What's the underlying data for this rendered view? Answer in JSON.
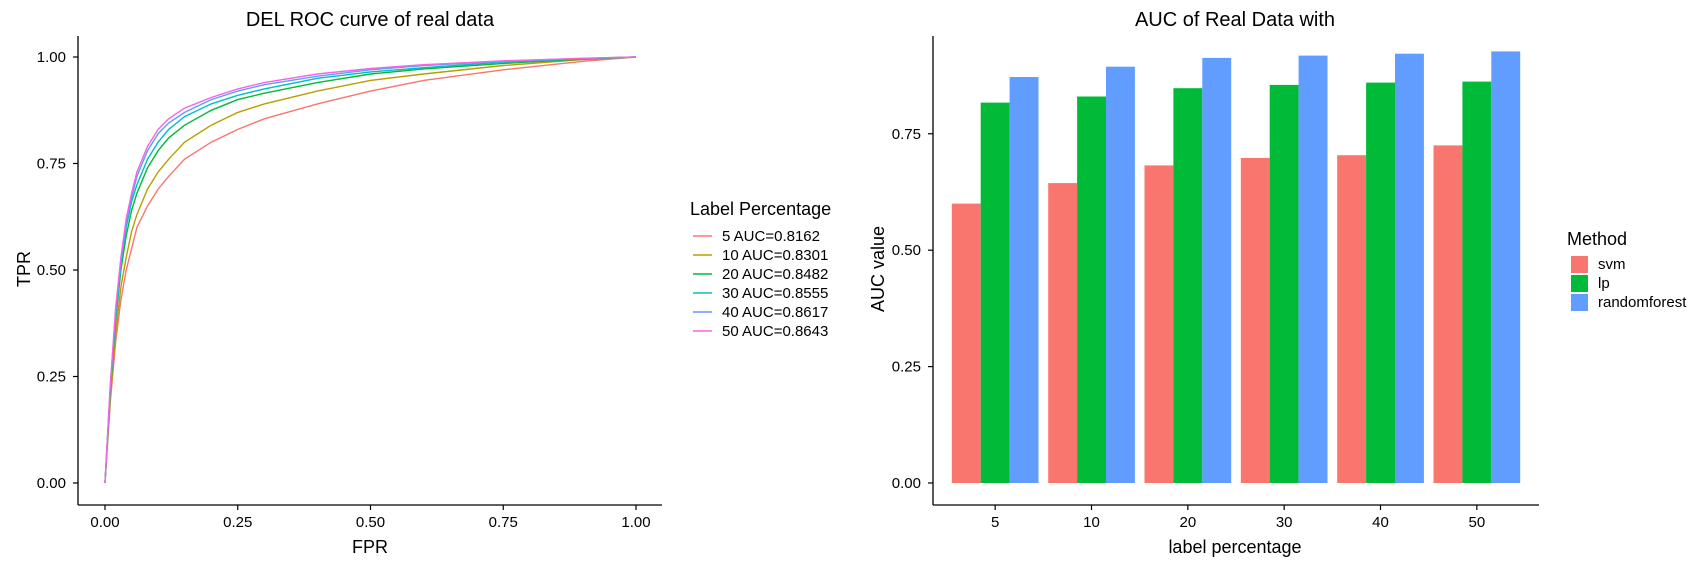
{
  "chart_data": [
    {
      "type": "line",
      "title": "DEL ROC curve of real data",
      "xlabel": "FPR",
      "ylabel": "TPR",
      "xlim": [
        0,
        1
      ],
      "ylim": [
        0,
        1
      ],
      "x_ticks": [
        "0.00",
        "0.25",
        "0.50",
        "0.75",
        "1.00"
      ],
      "y_ticks": [
        "0.00",
        "0.25",
        "0.50",
        "0.75",
        "1.00"
      ],
      "grid": false,
      "legend": {
        "title": "Label Percentage",
        "placement": "right"
      },
      "series": [
        {
          "name": "5 AUC=0.8162",
          "color": "#F8766D",
          "points": [
            [
              0,
              0
            ],
            [
              0.01,
              0.19
            ],
            [
              0.02,
              0.33
            ],
            [
              0.03,
              0.43
            ],
            [
              0.04,
              0.5
            ],
            [
              0.05,
              0.55
            ],
            [
              0.06,
              0.6
            ],
            [
              0.08,
              0.65
            ],
            [
              0.1,
              0.69
            ],
            [
              0.12,
              0.72
            ],
            [
              0.15,
              0.76
            ],
            [
              0.2,
              0.8
            ],
            [
              0.25,
              0.83
            ],
            [
              0.3,
              0.855
            ],
            [
              0.4,
              0.89
            ],
            [
              0.5,
              0.92
            ],
            [
              0.6,
              0.945
            ],
            [
              0.75,
              0.97
            ],
            [
              0.9,
              0.99
            ],
            [
              1,
              1
            ]
          ]
        },
        {
          "name": "10 AUC=0.8301",
          "color": "#B79F00",
          "points": [
            [
              0,
              0
            ],
            [
              0.01,
              0.2
            ],
            [
              0.02,
              0.35
            ],
            [
              0.03,
              0.46
            ],
            [
              0.04,
              0.53
            ],
            [
              0.05,
              0.59
            ],
            [
              0.06,
              0.63
            ],
            [
              0.08,
              0.69
            ],
            [
              0.1,
              0.73
            ],
            [
              0.12,
              0.76
            ],
            [
              0.15,
              0.8
            ],
            [
              0.2,
              0.84
            ],
            [
              0.25,
              0.87
            ],
            [
              0.3,
              0.89
            ],
            [
              0.4,
              0.92
            ],
            [
              0.5,
              0.945
            ],
            [
              0.6,
              0.96
            ],
            [
              0.75,
              0.98
            ],
            [
              0.9,
              0.994
            ],
            [
              1,
              1
            ]
          ]
        },
        {
          "name": "20 AUC=0.8482",
          "color": "#00BA38",
          "points": [
            [
              0,
              0
            ],
            [
              0.01,
              0.22
            ],
            [
              0.02,
              0.38
            ],
            [
              0.03,
              0.5
            ],
            [
              0.04,
              0.58
            ],
            [
              0.05,
              0.64
            ],
            [
              0.06,
              0.68
            ],
            [
              0.08,
              0.74
            ],
            [
              0.1,
              0.78
            ],
            [
              0.12,
              0.81
            ],
            [
              0.15,
              0.84
            ],
            [
              0.2,
              0.875
            ],
            [
              0.25,
              0.9
            ],
            [
              0.3,
              0.915
            ],
            [
              0.4,
              0.94
            ],
            [
              0.5,
              0.96
            ],
            [
              0.6,
              0.972
            ],
            [
              0.75,
              0.985
            ],
            [
              0.9,
              0.995
            ],
            [
              1,
              1
            ]
          ]
        },
        {
          "name": "30 AUC=0.8555",
          "color": "#00BFC4",
          "points": [
            [
              0,
              0
            ],
            [
              0.01,
              0.22
            ],
            [
              0.02,
              0.39
            ],
            [
              0.03,
              0.51
            ],
            [
              0.04,
              0.6
            ],
            [
              0.05,
              0.66
            ],
            [
              0.06,
              0.7
            ],
            [
              0.08,
              0.76
            ],
            [
              0.1,
              0.8
            ],
            [
              0.12,
              0.83
            ],
            [
              0.15,
              0.86
            ],
            [
              0.2,
              0.89
            ],
            [
              0.25,
              0.91
            ],
            [
              0.3,
              0.925
            ],
            [
              0.4,
              0.95
            ],
            [
              0.5,
              0.965
            ],
            [
              0.6,
              0.975
            ],
            [
              0.75,
              0.988
            ],
            [
              0.9,
              0.996
            ],
            [
              1,
              1
            ]
          ]
        },
        {
          "name": "40 AUC=0.8617",
          "color": "#619CFF",
          "points": [
            [
              0,
              0
            ],
            [
              0.01,
              0.23
            ],
            [
              0.02,
              0.4
            ],
            [
              0.03,
              0.52
            ],
            [
              0.04,
              0.61
            ],
            [
              0.05,
              0.67
            ],
            [
              0.06,
              0.72
            ],
            [
              0.08,
              0.78
            ],
            [
              0.1,
              0.82
            ],
            [
              0.12,
              0.845
            ],
            [
              0.15,
              0.87
            ],
            [
              0.2,
              0.9
            ],
            [
              0.25,
              0.92
            ],
            [
              0.3,
              0.935
            ],
            [
              0.4,
              0.955
            ],
            [
              0.5,
              0.97
            ],
            [
              0.6,
              0.98
            ],
            [
              0.75,
              0.99
            ],
            [
              0.9,
              0.997
            ],
            [
              1,
              1
            ]
          ]
        },
        {
          "name": "50 AUC=0.8643",
          "color": "#F564E3",
          "points": [
            [
              0,
              0
            ],
            [
              0.01,
              0.23
            ],
            [
              0.02,
              0.41
            ],
            [
              0.03,
              0.53
            ],
            [
              0.04,
              0.62
            ],
            [
              0.05,
              0.68
            ],
            [
              0.06,
              0.73
            ],
            [
              0.08,
              0.79
            ],
            [
              0.1,
              0.83
            ],
            [
              0.12,
              0.855
            ],
            [
              0.15,
              0.88
            ],
            [
              0.2,
              0.905
            ],
            [
              0.25,
              0.925
            ],
            [
              0.3,
              0.94
            ],
            [
              0.4,
              0.96
            ],
            [
              0.5,
              0.973
            ],
            [
              0.6,
              0.982
            ],
            [
              0.75,
              0.991
            ],
            [
              0.9,
              0.997
            ],
            [
              1,
              1
            ]
          ]
        }
      ]
    },
    {
      "type": "bar",
      "title": "AUC of Real Data with",
      "xlabel": "label percentage",
      "ylabel": "AUC value",
      "ylim": [
        0,
        0.96
      ],
      "y_ticks": [
        "0.00",
        "0.25",
        "0.50",
        "0.75"
      ],
      "grid": false,
      "categories": [
        "5",
        "10",
        "20",
        "30",
        "40",
        "50"
      ],
      "legend": {
        "title": "Method",
        "placement": "right"
      },
      "series": [
        {
          "name": "svm",
          "color": "#F8766D",
          "values": [
            0.6,
            0.644,
            0.682,
            0.698,
            0.704,
            0.725
          ]
        },
        {
          "name": "lp",
          "color": "#00BA38",
          "values": [
            0.817,
            0.83,
            0.848,
            0.855,
            0.86,
            0.862
          ]
        },
        {
          "name": "randomforest",
          "color": "#619CFF",
          "values": [
            0.872,
            0.894,
            0.913,
            0.918,
            0.922,
            0.927
          ]
        }
      ]
    }
  ]
}
